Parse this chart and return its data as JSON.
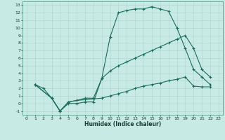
{
  "xlabel": "Humidex (Indice chaleur)",
  "bg_color": "#c8eae4",
  "grid_color": "#b0d8d0",
  "line_color": "#1a6b5a",
  "xlim": [
    -0.5,
    23.5
  ],
  "ylim": [
    -1.5,
    13.5
  ],
  "xticks": [
    0,
    1,
    2,
    3,
    4,
    5,
    6,
    7,
    8,
    9,
    10,
    11,
    12,
    13,
    14,
    15,
    16,
    17,
    18,
    19,
    20,
    21,
    22,
    23
  ],
  "yticks": [
    -1,
    0,
    1,
    2,
    3,
    4,
    5,
    6,
    7,
    8,
    9,
    10,
    11,
    12,
    13
  ],
  "line1_x": [
    1,
    2,
    3,
    4,
    5,
    6,
    7,
    8,
    9,
    10,
    11,
    12,
    13,
    14,
    15,
    16,
    17,
    18,
    19,
    20,
    21,
    22
  ],
  "line1_y": [
    2.5,
    2.0,
    0.7,
    -1.0,
    0.0,
    0.0,
    0.2,
    0.2,
    3.3,
    8.8,
    12.0,
    12.3,
    12.5,
    12.5,
    12.8,
    12.5,
    12.2,
    10.0,
    7.3,
    4.5,
    3.5,
    2.5
  ],
  "line2_x": [
    1,
    3,
    4,
    5,
    6,
    7,
    8,
    9,
    10,
    11,
    12,
    13,
    14,
    15,
    16,
    17,
    18,
    19,
    20,
    21,
    22
  ],
  "line2_y": [
    2.5,
    0.7,
    -1.0,
    0.2,
    0.4,
    0.7,
    0.7,
    3.3,
    4.3,
    5.0,
    5.5,
    6.0,
    6.5,
    7.0,
    7.5,
    8.0,
    8.5,
    9.0,
    7.3,
    4.5,
    3.5
  ],
  "line3_x": [
    1,
    3,
    4,
    5,
    6,
    7,
    8,
    9,
    10,
    11,
    12,
    13,
    14,
    15,
    16,
    17,
    18,
    19,
    20,
    21,
    22
  ],
  "line3_y": [
    2.5,
    0.7,
    -1.0,
    0.2,
    0.4,
    0.5,
    0.6,
    0.7,
    1.0,
    1.3,
    1.6,
    2.0,
    2.3,
    2.5,
    2.7,
    3.0,
    3.2,
    3.5,
    2.3,
    2.2,
    2.2
  ]
}
